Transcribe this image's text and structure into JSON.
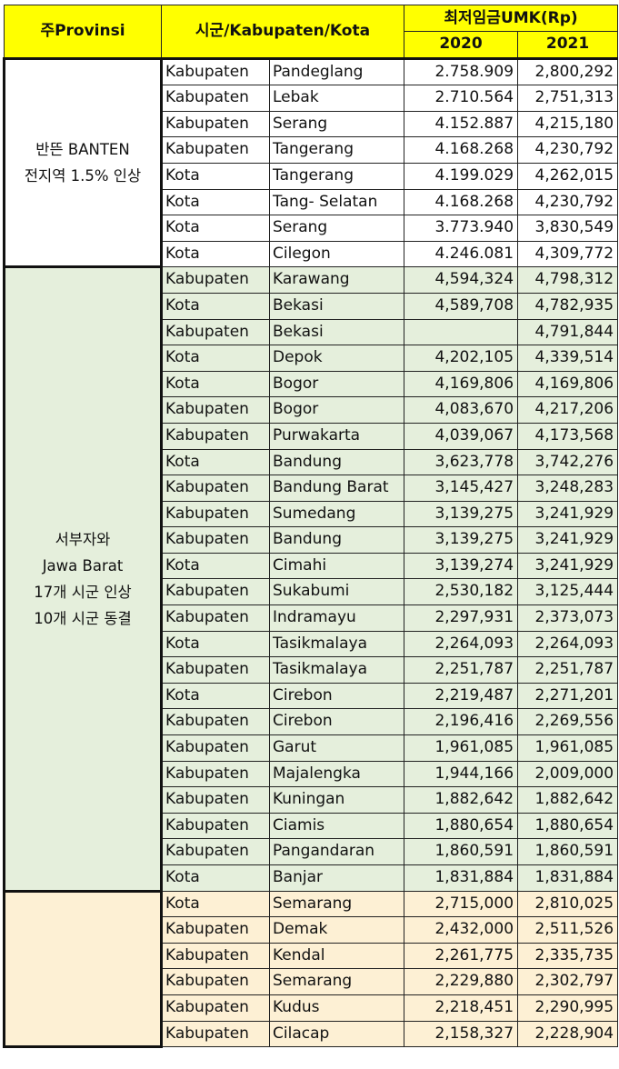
{
  "header": {
    "province": "주Provinsi",
    "region": "시군/Kabupaten/Kota",
    "wage": "최저임금UMK(Rp)",
    "year1": "2020",
    "year2": "2021"
  },
  "colors": {
    "header": "#ffff00",
    "banten": "#ffffff",
    "jawa_barat": "#e5efdc",
    "jawa_tengah": "#fdf0d4"
  },
  "groups": [
    {
      "province_lines": [
        "반뜬 BANTEN",
        "전지역 1.5% 인상"
      ],
      "rows": [
        [
          "Kabupaten",
          "Pandeglang",
          "2.758.909",
          "2,800,292"
        ],
        [
          "Kabupaten",
          "Lebak",
          "2.710.564",
          "2,751,313"
        ],
        [
          "Kabupaten",
          "Serang",
          "4.152.887",
          "4,215,180"
        ],
        [
          "Kabupaten",
          "Tangerang",
          "4.168.268",
          "4,230,792"
        ],
        [
          "Kota",
          "Tangerang",
          "4.199.029",
          "4,262,015"
        ],
        [
          "Kota",
          "Tang- Selatan",
          "4.168.268",
          "4,230,792"
        ],
        [
          "Kota",
          "Serang",
          "3.773.940",
          "3,830,549"
        ],
        [
          "Kota",
          "Cilegon",
          "4.246.081",
          "4,309,772"
        ]
      ]
    },
    {
      "province_lines": [
        "서부자와",
        "Jawa Barat",
        "17개 시군 인상",
        "10개 시군 동결"
      ],
      "rows": [
        [
          "Kabupaten",
          "Karawang",
          "4,594,324",
          "4,798,312"
        ],
        [
          "Kota",
          "Bekasi",
          "4,589,708",
          "4,782,935"
        ],
        [
          "Kabupaten",
          "Bekasi",
          "",
          "4,791,844"
        ],
        [
          "Kota",
          "Depok",
          "4,202,105",
          "4,339,514"
        ],
        [
          "Kota",
          "Bogor",
          "4,169,806",
          "4,169,806"
        ],
        [
          "Kabupaten",
          "Bogor",
          "4,083,670",
          "4,217,206"
        ],
        [
          "Kabupaten",
          "Purwakarta",
          "4,039,067",
          "4,173,568"
        ],
        [
          "Kota",
          "Bandung",
          "3,623,778",
          "3,742,276"
        ],
        [
          "Kabupaten",
          "Bandung Barat",
          "3,145,427",
          "3,248,283"
        ],
        [
          "Kabupaten",
          "Sumedang",
          "3,139,275",
          "3,241,929"
        ],
        [
          "Kabupaten",
          "Bandung",
          "3,139,275",
          "3,241,929"
        ],
        [
          "Kota",
          "Cimahi",
          "3,139,274",
          "3,241,929"
        ],
        [
          "Kabupaten",
          "Sukabumi",
          "2,530,182",
          "3,125,444"
        ],
        [
          "Kabupaten",
          "Indramayu",
          "2,297,931",
          "2,373,073"
        ],
        [
          "Kota",
          "Tasikmalaya",
          "2,264,093",
          "2,264,093"
        ],
        [
          "Kabupaten",
          "Tasikmalaya",
          "2,251,787",
          "2,251,787"
        ],
        [
          "Kota",
          "Cirebon",
          "2,219,487",
          "2,271,201"
        ],
        [
          "Kabupaten",
          "Cirebon",
          "2,196,416",
          "2,269,556"
        ],
        [
          "Kabupaten",
          "Garut",
          "1,961,085",
          "1,961,085"
        ],
        [
          "Kabupaten",
          "Majalengka",
          "1,944,166",
          "2,009,000"
        ],
        [
          "Kabupaten",
          "Kuningan",
          "1,882,642",
          "1,882,642"
        ],
        [
          "Kabupaten",
          "Ciamis",
          "1,880,654",
          "1,880,654"
        ],
        [
          "Kabupaten",
          "Pangandaran",
          "1,860,591",
          "1,860,591"
        ],
        [
          "Kota",
          "Banjar",
          "1,831,884",
          "1,831,884"
        ]
      ]
    },
    {
      "province_lines": [],
      "rows": [
        [
          "Kota",
          "Semarang",
          "2,715,000",
          "2,810,025"
        ],
        [
          "Kabupaten",
          "Demak",
          "2,432,000",
          "2,511,526"
        ],
        [
          "Kabupaten",
          "Kendal",
          "2,261,775",
          "2,335,735"
        ],
        [
          "Kabupaten",
          "Semarang",
          "2,229,880",
          "2,302,797"
        ],
        [
          "Kabupaten",
          "Kudus",
          "2,218,451",
          "2,290,995"
        ],
        [
          "Kabupaten",
          "Cilacap",
          "2,158,327",
          "2,228,904"
        ]
      ]
    }
  ]
}
